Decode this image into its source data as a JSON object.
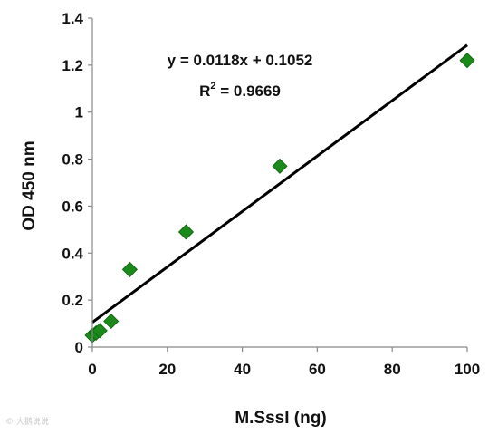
{
  "chart_data": {
    "type": "scatter",
    "xlabel": "M.SssI (ng)",
    "ylabel": "OD 450 nm",
    "xlim": [
      0,
      100
    ],
    "ylim": [
      0,
      1.4
    ],
    "x_ticks": [
      "0",
      "20",
      "40",
      "60",
      "80",
      "100"
    ],
    "y_ticks": [
      "0",
      "0.2",
      "0.4",
      "0.6",
      "0.8",
      "1",
      "1.2",
      "1.4"
    ],
    "grid": false,
    "legend": "none",
    "series": [
      {
        "marker": "diamond",
        "color": "#1a8a1a",
        "points": [
          {
            "x": 0,
            "y": 0.05
          },
          {
            "x": 1,
            "y": 0.06
          },
          {
            "x": 2,
            "y": 0.07
          },
          {
            "x": 5,
            "y": 0.11
          },
          {
            "x": 10,
            "y": 0.33
          },
          {
            "x": 25,
            "y": 0.49
          },
          {
            "x": 50,
            "y": 0.77
          },
          {
            "x": 100,
            "y": 1.22
          }
        ]
      }
    ],
    "trendline": {
      "slope": 0.0118,
      "intercept": 0.1052,
      "color": "#000000"
    },
    "annotations": {
      "equation": "y = 0.0118x + 0.1052",
      "r2_prefix": "R",
      "r2_sup": "2",
      "r2_value": " = 0.9669"
    }
  },
  "watermark": "© 大鹅说说"
}
